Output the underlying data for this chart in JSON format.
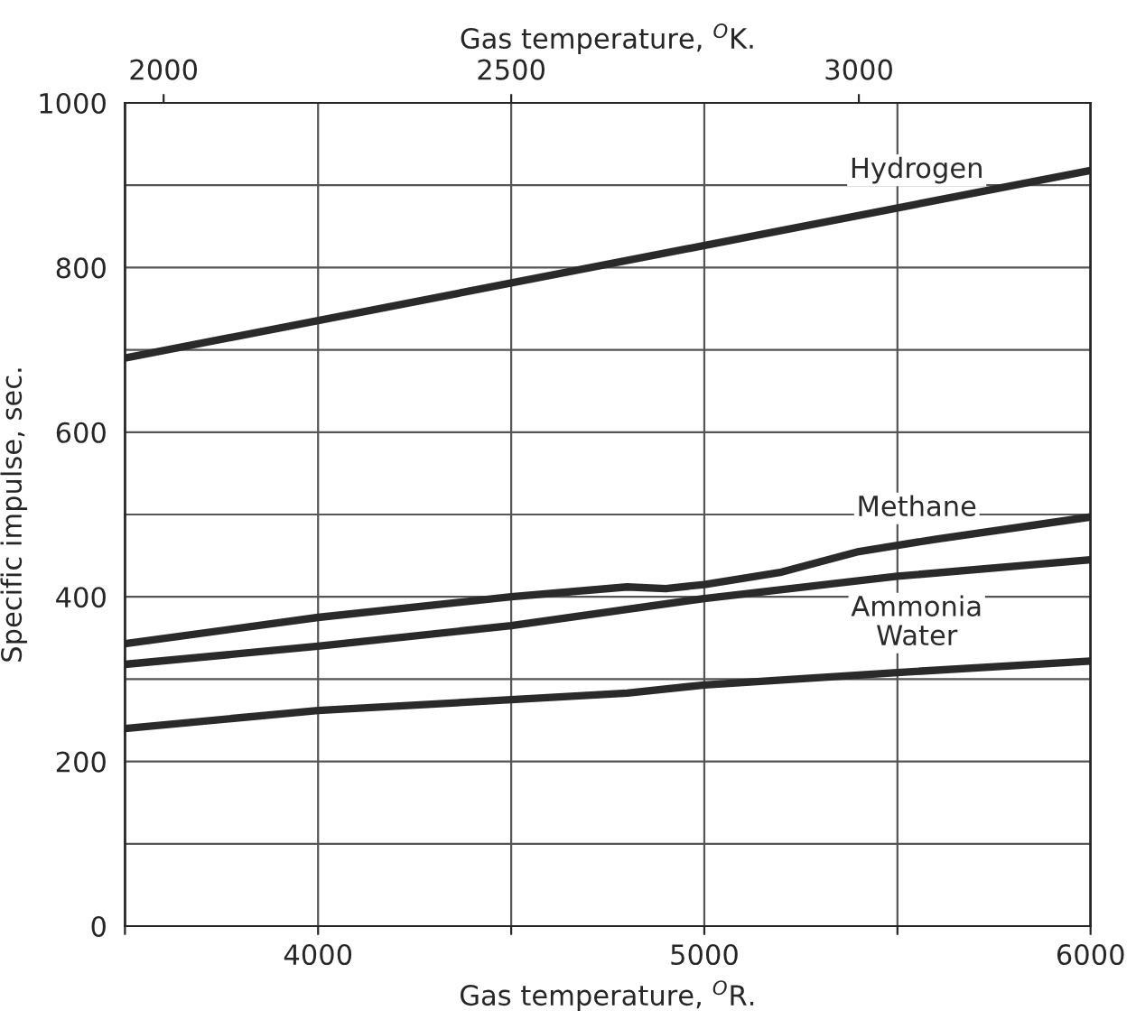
{
  "chart_data": {
    "type": "line",
    "xlabel": "Gas temperature, $^{O}$R.",
    "ylabel": "Specific impulse, sec.",
    "x2label": "Gas temperature, $^{O}$K.",
    "xlim": [
      3500,
      6000
    ],
    "xticks": [
      {
        "value": 3500,
        "label": null
      },
      4000,
      {
        "value": 4500,
        "label": null
      },
      5000,
      {
        "value": 5500,
        "label": null
      },
      6000
    ],
    "x2lim": [
      1944.4,
      3333.3
    ],
    "x2ticks": [
      2000,
      2500,
      3000
    ],
    "ylim": [
      0,
      1000
    ],
    "yticks": [
      0,
      {
        "value": 100,
        "label": null
      },
      200,
      {
        "value": 300,
        "label": null
      },
      400,
      {
        "value": 500,
        "label": null
      },
      600,
      {
        "value": 700,
        "label": null
      },
      800,
      {
        "value": 900,
        "label": null
      },
      1000
    ],
    "grid": true,
    "marker": "none",
    "line_style": "solid",
    "series": [
      {
        "name": "Hydrogen",
        "color": "#2a2a2a",
        "x": [
          3500,
          6000
        ],
        "values": [
          690,
          918
        ]
      },
      {
        "name": "Methane",
        "color": "#2a2a2a",
        "x": [
          3500,
          4000,
          4500,
          4800,
          4900,
          5000,
          5200,
          5400,
          5600,
          6000
        ],
        "values": [
          343,
          375,
          400,
          412,
          410,
          415,
          430,
          455,
          470,
          497
        ]
      },
      {
        "name": "Ammonia",
        "color": "#2a2a2a",
        "x": [
          3500,
          4000,
          4500,
          5000,
          5500,
          6000
        ],
        "values": [
          318,
          340,
          365,
          398,
          425,
          445
        ]
      },
      {
        "name": "Water",
        "color": "#2a2a2a",
        "x": [
          3500,
          4000,
          4500,
          4800,
          5000,
          5500,
          6000
        ],
        "values": [
          240,
          262,
          275,
          283,
          293,
          308,
          322
        ]
      }
    ]
  }
}
